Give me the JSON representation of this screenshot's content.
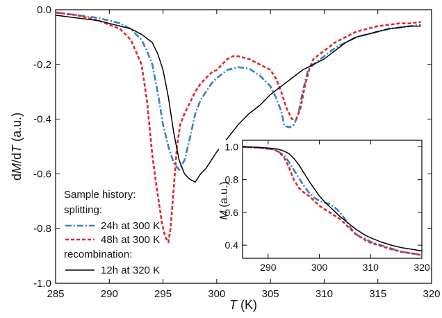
{
  "chart_data": [
    {
      "type": "line",
      "title": "",
      "xlabel_italic": "T",
      "xlabel_unit": " (K)",
      "ylabel_prefix": "d",
      "ylabel_italic_1": "M",
      "ylabel_mid": "/d",
      "ylabel_italic_2": "T",
      "ylabel_unit": " (a.u.)",
      "xlim": [
        285,
        320
      ],
      "ylim": [
        -1.0,
        0.0
      ],
      "xticks": [
        285,
        290,
        295,
        300,
        305,
        310,
        315,
        320
      ],
      "xtick_labels": [
        "285",
        "290",
        "295",
        "300",
        "305",
        "310",
        "315",
        "320"
      ],
      "yticks": [
        0.0,
        -0.2,
        -0.4,
        -0.6,
        -0.8,
        -1.0
      ],
      "ytick_labels": [
        "0.0",
        "-0.2",
        "-0.4",
        "-0.6",
        "-0.8",
        "-1.0"
      ],
      "legend": {
        "heading_1": "Sample history:",
        "heading_2": "splitting:",
        "heading_3": "recombination:",
        "entries": [
          "24h at 300 K",
          "48h at 300 K",
          "12h at 320 K"
        ]
      },
      "series": [
        {
          "name": "24h at 300 K",
          "color": "#3a7fbf",
          "style": "dash-dot",
          "x": [
            285,
            287,
            289,
            291,
            292,
            293,
            293.5,
            294,
            294.5,
            295,
            295.5,
            296,
            296.5,
            297,
            297.5,
            298,
            298.5,
            299,
            299.5,
            300,
            301,
            302,
            303,
            304,
            305,
            305.5,
            306,
            306.3,
            306.8,
            307.2,
            307.6,
            308,
            308.5,
            309,
            310,
            311,
            312,
            313,
            314,
            315,
            316,
            317,
            318,
            319
          ],
          "y": [
            -0.01,
            -0.02,
            -0.03,
            -0.05,
            -0.07,
            -0.11,
            -0.15,
            -0.2,
            -0.3,
            -0.42,
            -0.5,
            -0.56,
            -0.585,
            -0.55,
            -0.47,
            -0.38,
            -0.33,
            -0.3,
            -0.27,
            -0.25,
            -0.22,
            -0.21,
            -0.215,
            -0.24,
            -0.28,
            -0.32,
            -0.37,
            -0.425,
            -0.43,
            -0.42,
            -0.38,
            -0.3,
            -0.22,
            -0.2,
            -0.17,
            -0.14,
            -0.12,
            -0.1,
            -0.09,
            -0.08,
            -0.07,
            -0.065,
            -0.06,
            -0.055
          ]
        },
        {
          "name": "48h at 300 K",
          "color": "#e0262a",
          "style": "dashed",
          "x": [
            285,
            287,
            289,
            291,
            292,
            293,
            293.5,
            294,
            294.3,
            294.6,
            294.9,
            295.2,
            295.5,
            295.7,
            296,
            296.3,
            296.6,
            297,
            297.5,
            298,
            298.5,
            299,
            299.5,
            300,
            300.5,
            301,
            301.5,
            302,
            303,
            304,
            305,
            305.5,
            306,
            306.5,
            307,
            307.4,
            307.8,
            308.2,
            308.6,
            309,
            310,
            311,
            312,
            313,
            314,
            315,
            316,
            317,
            318,
            319
          ],
          "y": [
            -0.01,
            -0.02,
            -0.04,
            -0.07,
            -0.11,
            -0.2,
            -0.33,
            -0.53,
            -0.62,
            -0.7,
            -0.78,
            -0.83,
            -0.85,
            -0.8,
            -0.65,
            -0.5,
            -0.42,
            -0.38,
            -0.34,
            -0.3,
            -0.27,
            -0.25,
            -0.23,
            -0.22,
            -0.2,
            -0.18,
            -0.17,
            -0.17,
            -0.18,
            -0.2,
            -0.22,
            -0.25,
            -0.3,
            -0.36,
            -0.4,
            -0.4,
            -0.36,
            -0.28,
            -0.22,
            -0.18,
            -0.15,
            -0.12,
            -0.1,
            -0.08,
            -0.07,
            -0.06,
            -0.055,
            -0.05,
            -0.05,
            -0.045
          ]
        },
        {
          "name": "12h at 320 K",
          "color": "#000000",
          "style": "solid",
          "x": [
            285,
            287,
            289,
            290,
            291,
            292,
            293,
            294,
            294.5,
            295,
            295.5,
            296,
            296.5,
            297,
            297.5,
            298,
            298.5,
            299,
            299.5,
            300,
            301,
            302,
            303,
            304,
            305,
            306,
            307,
            308,
            309,
            310,
            311,
            312,
            313,
            314,
            315,
            316,
            317,
            318,
            319
          ],
          "y": [
            -0.02,
            -0.03,
            -0.04,
            -0.05,
            -0.06,
            -0.07,
            -0.09,
            -0.12,
            -0.16,
            -0.22,
            -0.32,
            -0.45,
            -0.55,
            -0.6,
            -0.62,
            -0.63,
            -0.6,
            -0.58,
            -0.55,
            -0.52,
            -0.47,
            -0.42,
            -0.38,
            -0.35,
            -0.31,
            -0.28,
            -0.25,
            -0.22,
            -0.2,
            -0.18,
            -0.15,
            -0.12,
            -0.1,
            -0.09,
            -0.08,
            -0.07,
            -0.065,
            -0.06,
            -0.06
          ]
        }
      ]
    },
    {
      "type": "line",
      "title": "",
      "xlabel": "",
      "ylabel_italic": "M",
      "ylabel_unit": " (a.u.)",
      "xlim": [
        285,
        320
      ],
      "ylim": [
        0.32,
        1.04
      ],
      "xticks": [
        290,
        300,
        310,
        320
      ],
      "xtick_labels": [
        "290",
        "300",
        "310",
        "320"
      ],
      "yticks": [
        1.0,
        0.8,
        0.6,
        0.4
      ],
      "ytick_labels": [
        "1.0",
        "0.8",
        "0.6",
        "0.4"
      ],
      "series": [
        {
          "name": "24h at 300 K",
          "color": "#3a7fbf",
          "style": "dash-dot",
          "x": [
            285,
            288,
            291,
            292,
            293,
            294,
            295,
            296,
            297,
            298,
            299,
            300,
            301,
            302,
            303,
            304,
            305,
            306,
            307,
            308,
            309,
            310,
            312,
            314,
            316,
            318,
            320
          ],
          "y": [
            1.0,
            0.995,
            0.985,
            0.97,
            0.95,
            0.91,
            0.86,
            0.81,
            0.76,
            0.72,
            0.69,
            0.67,
            0.66,
            0.65,
            0.63,
            0.6,
            0.56,
            0.51,
            0.47,
            0.45,
            0.44,
            0.42,
            0.4,
            0.38,
            0.36,
            0.35,
            0.34
          ]
        },
        {
          "name": "48h at 300 K",
          "color": "#e0262a",
          "style": "dashed",
          "x": [
            285,
            288,
            291,
            292,
            293,
            294,
            295,
            296,
            297,
            298,
            299,
            300,
            301,
            302,
            303,
            304,
            305,
            306,
            307,
            308,
            309,
            310,
            312,
            314,
            316,
            318,
            320
          ],
          "y": [
            1.0,
            0.995,
            0.985,
            0.97,
            0.94,
            0.88,
            0.8,
            0.75,
            0.72,
            0.7,
            0.67,
            0.64,
            0.62,
            0.6,
            0.58,
            0.56,
            0.53,
            0.5,
            0.47,
            0.45,
            0.43,
            0.415,
            0.395,
            0.375,
            0.36,
            0.35,
            0.34
          ]
        },
        {
          "name": "12h at 320 K",
          "color": "#000000",
          "style": "solid",
          "x": [
            285,
            288,
            291,
            292,
            293,
            294,
            295,
            296,
            297,
            298,
            299,
            300,
            301,
            302,
            303,
            304,
            305,
            306,
            307,
            308,
            309,
            310,
            312,
            314,
            316,
            318,
            320
          ],
          "y": [
            1.0,
            0.997,
            0.99,
            0.985,
            0.975,
            0.96,
            0.93,
            0.89,
            0.84,
            0.79,
            0.745,
            0.7,
            0.665,
            0.635,
            0.605,
            0.575,
            0.55,
            0.525,
            0.5,
            0.48,
            0.46,
            0.445,
            0.42,
            0.4,
            0.385,
            0.375,
            0.365
          ]
        }
      ]
    }
  ]
}
